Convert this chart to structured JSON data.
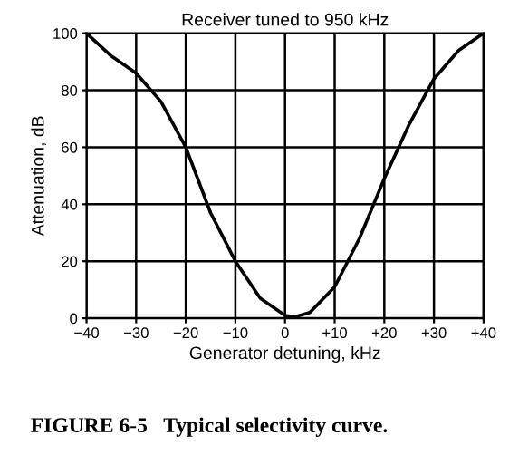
{
  "chart_data": {
    "type": "line",
    "title": "Receiver tuned to 950 kHz",
    "xlabel": "Generator detuning, kHz",
    "ylabel": "Attenuation, dB",
    "annotations": [
      "FIGURE 6-5   Typical selectivity curve."
    ],
    "series": [
      {
        "color": "#000000",
        "x": [
          -40,
          -35,
          -30,
          -25,
          -20,
          -15,
          -10,
          -5,
          0,
          2,
          5,
          10,
          15,
          20,
          25,
          30,
          35,
          40
        ],
        "values": [
          100,
          92,
          86,
          76,
          60,
          37,
          20,
          7,
          1,
          0.5,
          2,
          11,
          28,
          49,
          68,
          84,
          94,
          100
        ]
      }
    ],
    "xlim": [
      -40,
      40
    ],
    "ylim": [
      0,
      100
    ],
    "xticks": [
      {
        "value": -40,
        "label": "−40"
      },
      {
        "value": -30,
        "label": "−30"
      },
      {
        "value": -20,
        "label": "−20"
      },
      {
        "value": -10,
        "label": "−10"
      },
      0,
      {
        "value": 10,
        "label": "+10"
      },
      {
        "value": 20,
        "label": "+20"
      },
      {
        "value": 30,
        "label": "+30"
      },
      {
        "value": 40,
        "label": "+40"
      }
    ],
    "yticks": [
      0,
      20,
      40,
      60,
      80,
      100
    ],
    "grid": true,
    "marker": "none",
    "line_style": "solid"
  }
}
